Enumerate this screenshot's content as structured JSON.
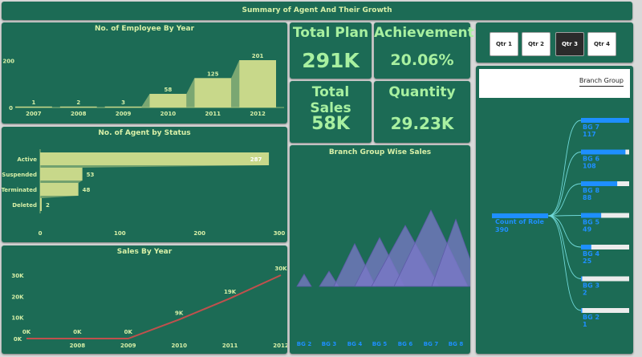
{
  "header": {
    "title": "Summary of Agent And Their Growth"
  },
  "kpis": {
    "total_plan": {
      "label": "Total Plan",
      "value": "291K"
    },
    "achievement": {
      "label": "Achievement",
      "value": "20.06%"
    },
    "total_sales": {
      "label": "Total Sales",
      "value": "58K"
    },
    "quantity": {
      "label": "Quantity",
      "value": "29.23K"
    }
  },
  "slicer": {
    "buttons": [
      "Qtr 1",
      "Qtr 2",
      "Qtr 3",
      "Qtr 4"
    ],
    "selected": "Qtr 3"
  },
  "decomp": {
    "header": "Branch Group",
    "root_label": "Count of Role",
    "root_value": "390"
  },
  "colors": {
    "background": "#d9d9d9",
    "panel": "#1c6b55",
    "bar_fill": "#c8d88a",
    "title_text": "#d8f0a8",
    "line_red": "#c0504d",
    "purple": "#7b78c8",
    "blue_text": "#1e8fff"
  },
  "chart_data": [
    {
      "type": "bar",
      "title": "No. of Employee By Year",
      "categories": [
        "2007",
        "2008",
        "2009",
        "2010",
        "2011",
        "2012"
      ],
      "values": [
        1,
        2,
        3,
        58,
        125,
        201
      ],
      "yticks": [
        "0",
        "200"
      ],
      "ylim": [
        0,
        201
      ]
    },
    {
      "type": "bar",
      "orientation": "horizontal",
      "title": "No. of Agent by Status",
      "categories": [
        "Active",
        "Suspended",
        "Terminated",
        "Deleted"
      ],
      "values": [
        287,
        53,
        48,
        2
      ],
      "xticks": [
        "0",
        "100",
        "200",
        "300"
      ],
      "xlim": [
        0,
        300
      ]
    },
    {
      "type": "line",
      "title": "Sales By Year",
      "x": [
        "2007",
        "2008",
        "2009",
        "2010",
        "2011",
        "2012"
      ],
      "values": [
        0,
        0,
        0,
        9,
        19,
        30
      ],
      "labels": [
        "0K",
        "0K",
        "0K",
        "9K",
        "19K",
        "30K"
      ],
      "xticks": [
        "2008",
        "2009",
        "2010",
        "2011",
        "2012"
      ],
      "yticks": [
        "0K",
        "10K",
        "20K",
        "30K"
      ],
      "ylim": [
        0,
        30
      ]
    },
    {
      "type": "bar",
      "title": "Branch Group Wise Sales",
      "categories": [
        "BG 2",
        "BG 3",
        "BG 4",
        "BG 5",
        "BG 6",
        "BG 7",
        "BG 8"
      ],
      "values": [
        4,
        5,
        14,
        16,
        20,
        25,
        22
      ]
    },
    {
      "type": "bar",
      "orientation": "horizontal",
      "categories": [
        "BG 7",
        "BG 6",
        "BG 8",
        "BG 5",
        "BG 4",
        "BG 3",
        "BG 2"
      ],
      "values": [
        117,
        108,
        88,
        49,
        25,
        2,
        1
      ],
      "xlim": [
        0,
        117
      ]
    }
  ]
}
